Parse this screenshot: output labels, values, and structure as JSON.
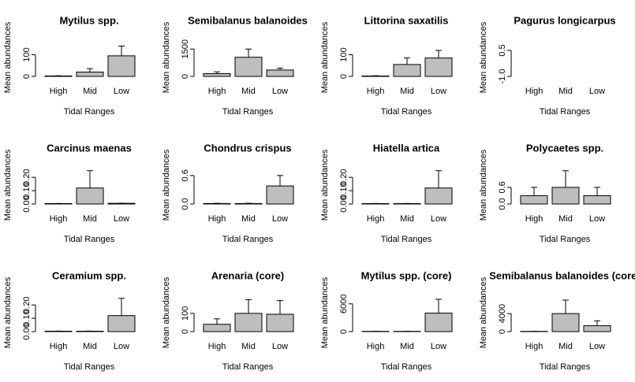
{
  "chart_data": [
    {
      "type": "bar",
      "title": "Mytilus spp.",
      "xlabel": "Tidal Ranges",
      "ylabel": "Mean abundances",
      "categories": [
        "High",
        "Mid",
        "Low"
      ],
      "values": [
        2,
        20,
        95
      ],
      "errors": [
        1,
        16,
        45
      ],
      "color": "#bebebe",
      "ylim": [
        0,
        160
      ],
      "yticks": [
        0,
        100
      ]
    },
    {
      "type": "bar",
      "title": "Semibalanus balanoides",
      "xlabel": "Tidal Ranges",
      "ylabel": "Mean abundances",
      "categories": [
        "High",
        "Mid",
        "Low"
      ],
      "values": [
        150,
        1050,
        350
      ],
      "errors": [
        100,
        450,
        100
      ],
      "color": "#bebebe",
      "ylim": [
        0,
        1900
      ],
      "yticks": [
        0,
        1500
      ]
    },
    {
      "type": "bar",
      "title": "Littorina saxatilis",
      "xlabel": "Tidal Ranges",
      "ylabel": "Mean abundances",
      "categories": [
        "High",
        "Mid",
        "Low"
      ],
      "values": [
        2,
        55,
        85
      ],
      "errors": [
        1,
        30,
        35
      ],
      "color": "#bebebe",
      "ylim": [
        0,
        160
      ],
      "yticks": [
        0,
        100
      ]
    },
    {
      "type": "bar",
      "title": "Pagurus longicarpus",
      "xlabel": "Tidal Ranges",
      "ylabel": "Mean abundances",
      "categories": [
        "High",
        "Mid",
        "Low"
      ],
      "values": [
        0,
        0,
        0
      ],
      "errors": [
        0,
        0,
        0
      ],
      "color": "#bebebe",
      "ylim": [
        -1,
        1
      ],
      "yticks": [
        {
          "value": -1,
          "label": "-1.0"
        },
        {
          "value": 0.5,
          "label": "0.5"
        }
      ]
    },
    {
      "type": "bar",
      "title": "Carcinus maenas",
      "xlabel": "Tidal Ranges",
      "ylabel": "Mean abundances",
      "categories": [
        "High",
        "Mid",
        "Low"
      ],
      "values": [
        0.003,
        0.12,
        0.005
      ],
      "errors": [
        0.001,
        0.13,
        0.001
      ],
      "color": "#bebebe",
      "ylim": [
        0,
        0.26
      ],
      "yticks": [
        {
          "value": 0,
          "label": "0.00"
        },
        {
          "value": 0.1,
          "label": "0.10"
        },
        {
          "value": 0.2,
          "label": "0.20"
        }
      ]
    },
    {
      "type": "bar",
      "title": "Chondrus crispus",
      "xlabel": "Tidal Ranges",
      "ylabel": "Mean abundances",
      "categories": [
        "High",
        "Mid",
        "Low"
      ],
      "values": [
        0.01,
        0.01,
        0.38
      ],
      "errors": [
        0.005,
        0.005,
        0.22
      ],
      "color": "#bebebe",
      "ylim": [
        0,
        0.73
      ],
      "yticks": [
        {
          "value": 0,
          "label": "0.0"
        },
        {
          "value": 0.6,
          "label": "0.6"
        }
      ]
    },
    {
      "type": "bar",
      "title": "Hiatella artica",
      "xlabel": "Tidal Ranges",
      "ylabel": "Mean abundances",
      "categories": [
        "High",
        "Mid",
        "Low"
      ],
      "values": [
        0.003,
        0.003,
        0.12
      ],
      "errors": [
        0.001,
        0.001,
        0.13
      ],
      "color": "#bebebe",
      "ylim": [
        0,
        0.26
      ],
      "yticks": [
        {
          "value": 0,
          "label": "0.00"
        },
        {
          "value": 0.1,
          "label": "0.10"
        },
        {
          "value": 0.2,
          "label": "0.20"
        }
      ]
    },
    {
      "type": "bar",
      "title": "Polycaetes spp.",
      "xlabel": "Tidal Ranges",
      "ylabel": "Mean abundances",
      "categories": [
        "High",
        "Mid",
        "Low"
      ],
      "values": [
        0.3,
        0.6,
        0.3
      ],
      "errors": [
        0.3,
        0.6,
        0.3
      ],
      "color": "#bebebe",
      "ylim": [
        0,
        1.25
      ],
      "yticks": [
        {
          "value": 0,
          "label": "0.0"
        },
        {
          "value": 0.6,
          "label": "0.6"
        }
      ]
    },
    {
      "type": "bar",
      "title": "Ceramium spp.",
      "xlabel": "Tidal Ranges",
      "ylabel": "Mean abundances",
      "categories": [
        "High",
        "Mid",
        "Low"
      ],
      "values": [
        0.003,
        0.003,
        0.12
      ],
      "errors": [
        0.001,
        0.001,
        0.13
      ],
      "color": "#bebebe",
      "ylim": [
        0,
        0.26
      ],
      "yticks": [
        {
          "value": 0,
          "label": "0.00"
        },
        {
          "value": 0.1,
          "label": "0.10"
        },
        {
          "value": 0.2,
          "label": "0.20"
        }
      ]
    },
    {
      "type": "bar",
      "title": "Arenaria (core)",
      "xlabel": "Tidal Ranges",
      "ylabel": "Mean abundances",
      "categories": [
        "High",
        "Mid",
        "Low"
      ],
      "values": [
        40,
        100,
        95
      ],
      "errors": [
        30,
        75,
        75
      ],
      "color": "#bebebe",
      "ylim": [
        0,
        190
      ],
      "yticks": [
        0,
        100
      ]
    },
    {
      "type": "bar",
      "title": "Mytilus spp. (core)",
      "xlabel": "Tidal Ranges",
      "ylabel": "Mean abundances",
      "categories": [
        "High",
        "Mid",
        "Low"
      ],
      "values": [
        50,
        50,
        4000
      ],
      "errors": [
        20,
        20,
        3000
      ],
      "color": "#bebebe",
      "ylim": [
        0,
        7500
      ],
      "yticks": [
        0,
        6000
      ]
    },
    {
      "type": "bar",
      "title": "Semibalanus balanoides (core)",
      "xlabel": "Tidal Ranges",
      "ylabel": "Mean abundances",
      "categories": [
        "High",
        "Mid",
        "Low"
      ],
      "values": [
        50,
        4000,
        1300
      ],
      "errors": [
        20,
        3000,
        1100
      ],
      "color": "#bebebe",
      "ylim": [
        0,
        7700
      ],
      "yticks": [
        0,
        4000
      ]
    }
  ]
}
